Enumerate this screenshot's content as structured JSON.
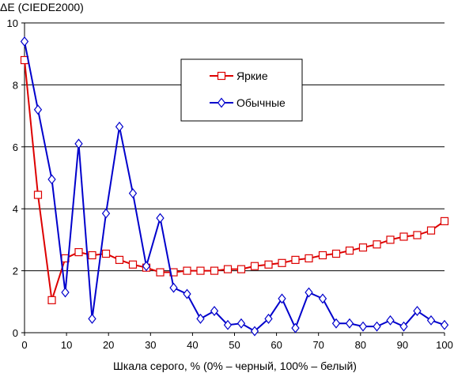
{
  "chart_data": {
    "type": "line",
    "title": "",
    "ylabel": "ΔE (CIEDE2000)",
    "xlabel": "Шкала серого, % (0% – черный, 100% – белый)",
    "xlim": [
      0,
      100
    ],
    "ylim": [
      0,
      10
    ],
    "x_ticks": [
      0,
      10,
      20,
      30,
      40,
      50,
      60,
      70,
      80,
      90,
      100
    ],
    "y_ticks": [
      0,
      2,
      4,
      6,
      8,
      10
    ],
    "grid": "horizontal",
    "legend_position": "upper-center",
    "series": [
      {
        "name": "Яркие",
        "color": "#dd0000",
        "marker": "square",
        "x": [
          0,
          3.2,
          6.5,
          9.7,
          12.9,
          16.1,
          19.4,
          22.6,
          25.8,
          29.0,
          32.3,
          35.5,
          38.7,
          41.9,
          45.2,
          48.4,
          51.6,
          54.8,
          58.1,
          61.3,
          64.5,
          67.7,
          71.0,
          74.2,
          77.4,
          80.6,
          83.9,
          87.1,
          90.3,
          93.5,
          96.8,
          100
        ],
        "values": [
          8.8,
          4.45,
          1.05,
          2.4,
          2.6,
          2.5,
          2.55,
          2.35,
          2.2,
          2.1,
          1.95,
          1.95,
          2.0,
          2.0,
          2.0,
          2.05,
          2.05,
          2.15,
          2.2,
          2.25,
          2.35,
          2.4,
          2.5,
          2.55,
          2.65,
          2.75,
          2.85,
          3.0,
          3.1,
          3.15,
          3.3,
          3.6
        ]
      },
      {
        "name": "Обычные",
        "color": "#0000cc",
        "marker": "diamond",
        "x": [
          0,
          3.2,
          6.5,
          9.7,
          12.9,
          16.1,
          19.4,
          22.6,
          25.8,
          29.0,
          32.3,
          35.5,
          38.7,
          41.9,
          45.2,
          48.4,
          51.6,
          54.8,
          58.1,
          61.3,
          64.5,
          67.7,
          71.0,
          74.2,
          77.4,
          80.6,
          83.9,
          87.1,
          90.3,
          93.5,
          96.8,
          100
        ],
        "values": [
          9.4,
          7.2,
          4.95,
          1.3,
          6.1,
          0.45,
          3.85,
          6.65,
          4.5,
          2.15,
          3.7,
          1.45,
          1.25,
          0.45,
          0.7,
          0.25,
          0.3,
          0.05,
          0.45,
          1.1,
          0.15,
          1.3,
          1.1,
          0.3,
          0.3,
          0.2,
          0.2,
          0.4,
          0.2,
          0.7,
          0.4,
          0.25
        ]
      }
    ]
  }
}
